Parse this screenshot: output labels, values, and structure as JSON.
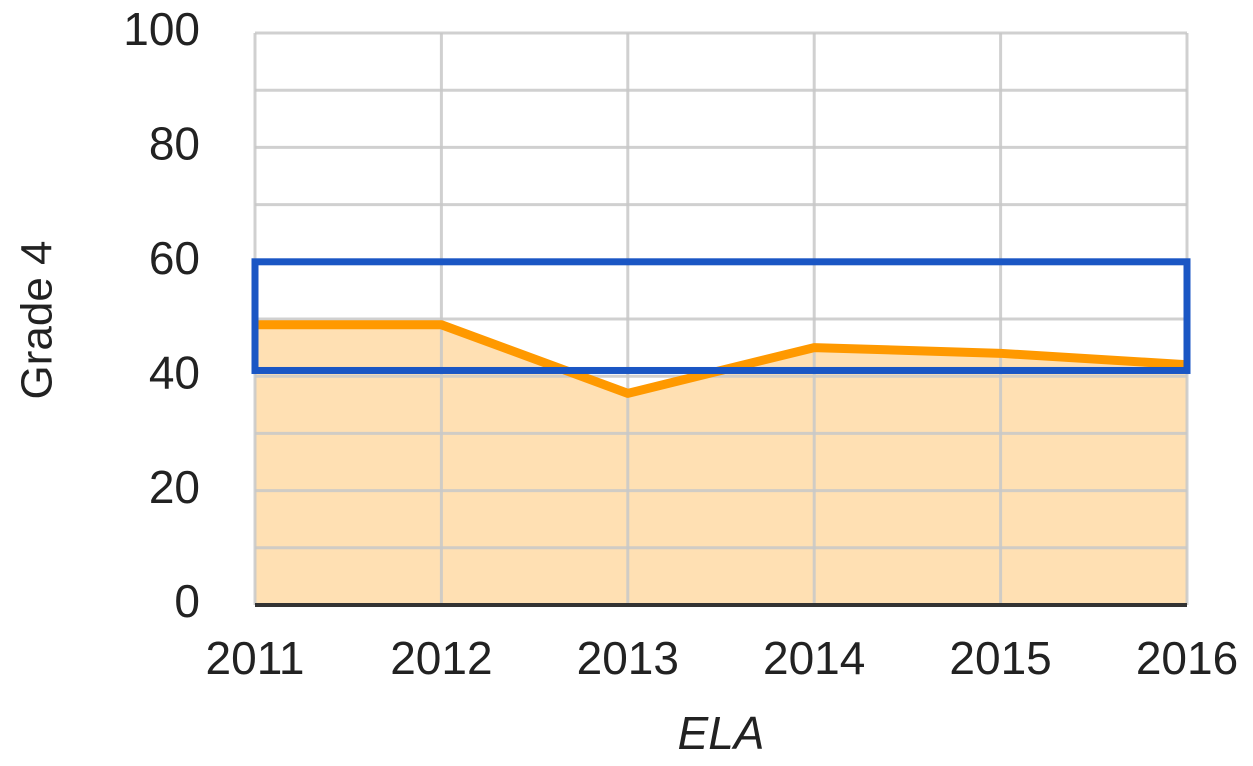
{
  "chart_data": {
    "type": "area",
    "categories": [
      "2011",
      "2012",
      "2013",
      "2014",
      "2015",
      "2016"
    ],
    "series": [
      {
        "name": "ELA",
        "color": "#ff9900",
        "fill": "#ffe0b3",
        "values": [
          49,
          49,
          37,
          45,
          44,
          42
        ]
      }
    ],
    "ylim": [
      0,
      100
    ],
    "yticks": [
      0,
      20,
      40,
      60,
      80,
      100
    ],
    "minor_yticks": [
      10,
      30,
      50,
      70,
      90
    ],
    "grid": true,
    "band": [
      41,
      60
    ],
    "band_color": "#1a56c4",
    "ylabel": "Grade 4",
    "xlabel": "ELA"
  }
}
